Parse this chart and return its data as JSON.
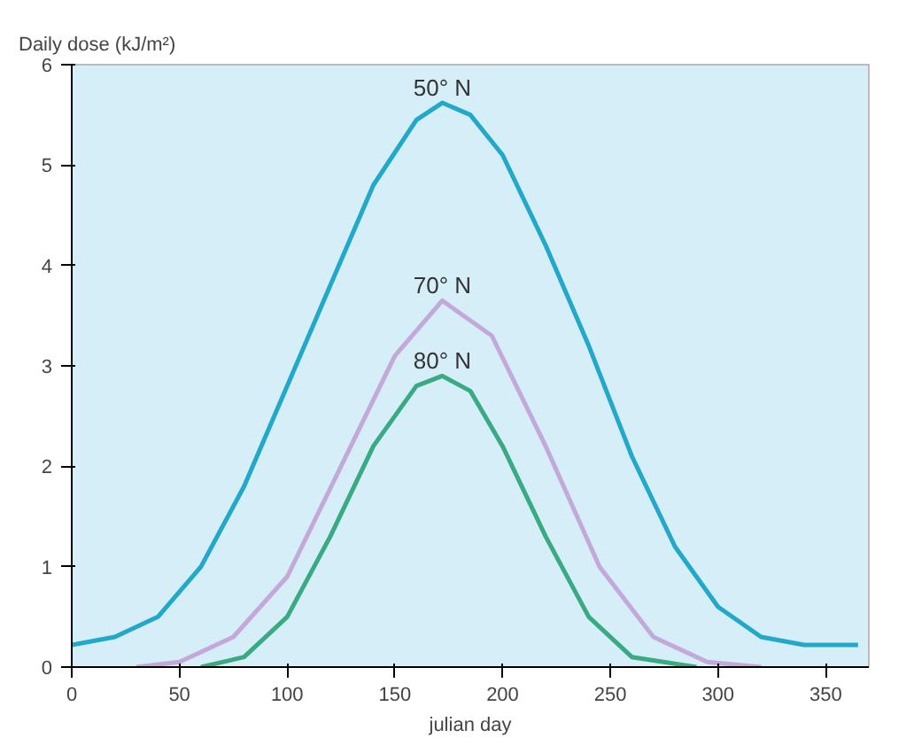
{
  "chart_data": {
    "type": "line",
    "ylabel": "Daily dose (kJ/m²)",
    "xlabel": "julian day",
    "xlim": [
      0,
      370
    ],
    "ylim": [
      0,
      6
    ],
    "xticks": [
      0,
      50,
      100,
      150,
      200,
      250,
      300,
      350
    ],
    "yticks": [
      0,
      1,
      2,
      3,
      4,
      5,
      6
    ],
    "grid": false,
    "legend": false,
    "series": [
      {
        "name": "50° N",
        "color": "#22a8c8",
        "x": [
          0,
          20,
          40,
          60,
          80,
          100,
          120,
          140,
          160,
          172,
          185,
          200,
          220,
          240,
          260,
          280,
          300,
          320,
          340,
          365
        ],
        "values": [
          0.22,
          0.3,
          0.5,
          1.0,
          1.8,
          2.8,
          3.8,
          4.8,
          5.45,
          5.62,
          5.5,
          5.1,
          4.2,
          3.2,
          2.1,
          1.2,
          0.6,
          0.3,
          0.22,
          0.22
        ]
      },
      {
        "name": "70° N",
        "color": "#c3a9d9",
        "x": [
          30,
          50,
          75,
          100,
          125,
          150,
          172,
          195,
          220,
          245,
          270,
          295,
          320
        ],
        "values": [
          0,
          0.05,
          0.3,
          0.9,
          2.0,
          3.1,
          3.65,
          3.3,
          2.2,
          1.0,
          0.3,
          0.05,
          0
        ]
      },
      {
        "name": "80° N",
        "color": "#3aaa82",
        "x": [
          60,
          80,
          100,
          120,
          140,
          160,
          172,
          185,
          200,
          220,
          240,
          260,
          290
        ],
        "values": [
          0,
          0.1,
          0.5,
          1.3,
          2.2,
          2.8,
          2.9,
          2.75,
          2.2,
          1.3,
          0.5,
          0.1,
          0
        ]
      }
    ]
  }
}
